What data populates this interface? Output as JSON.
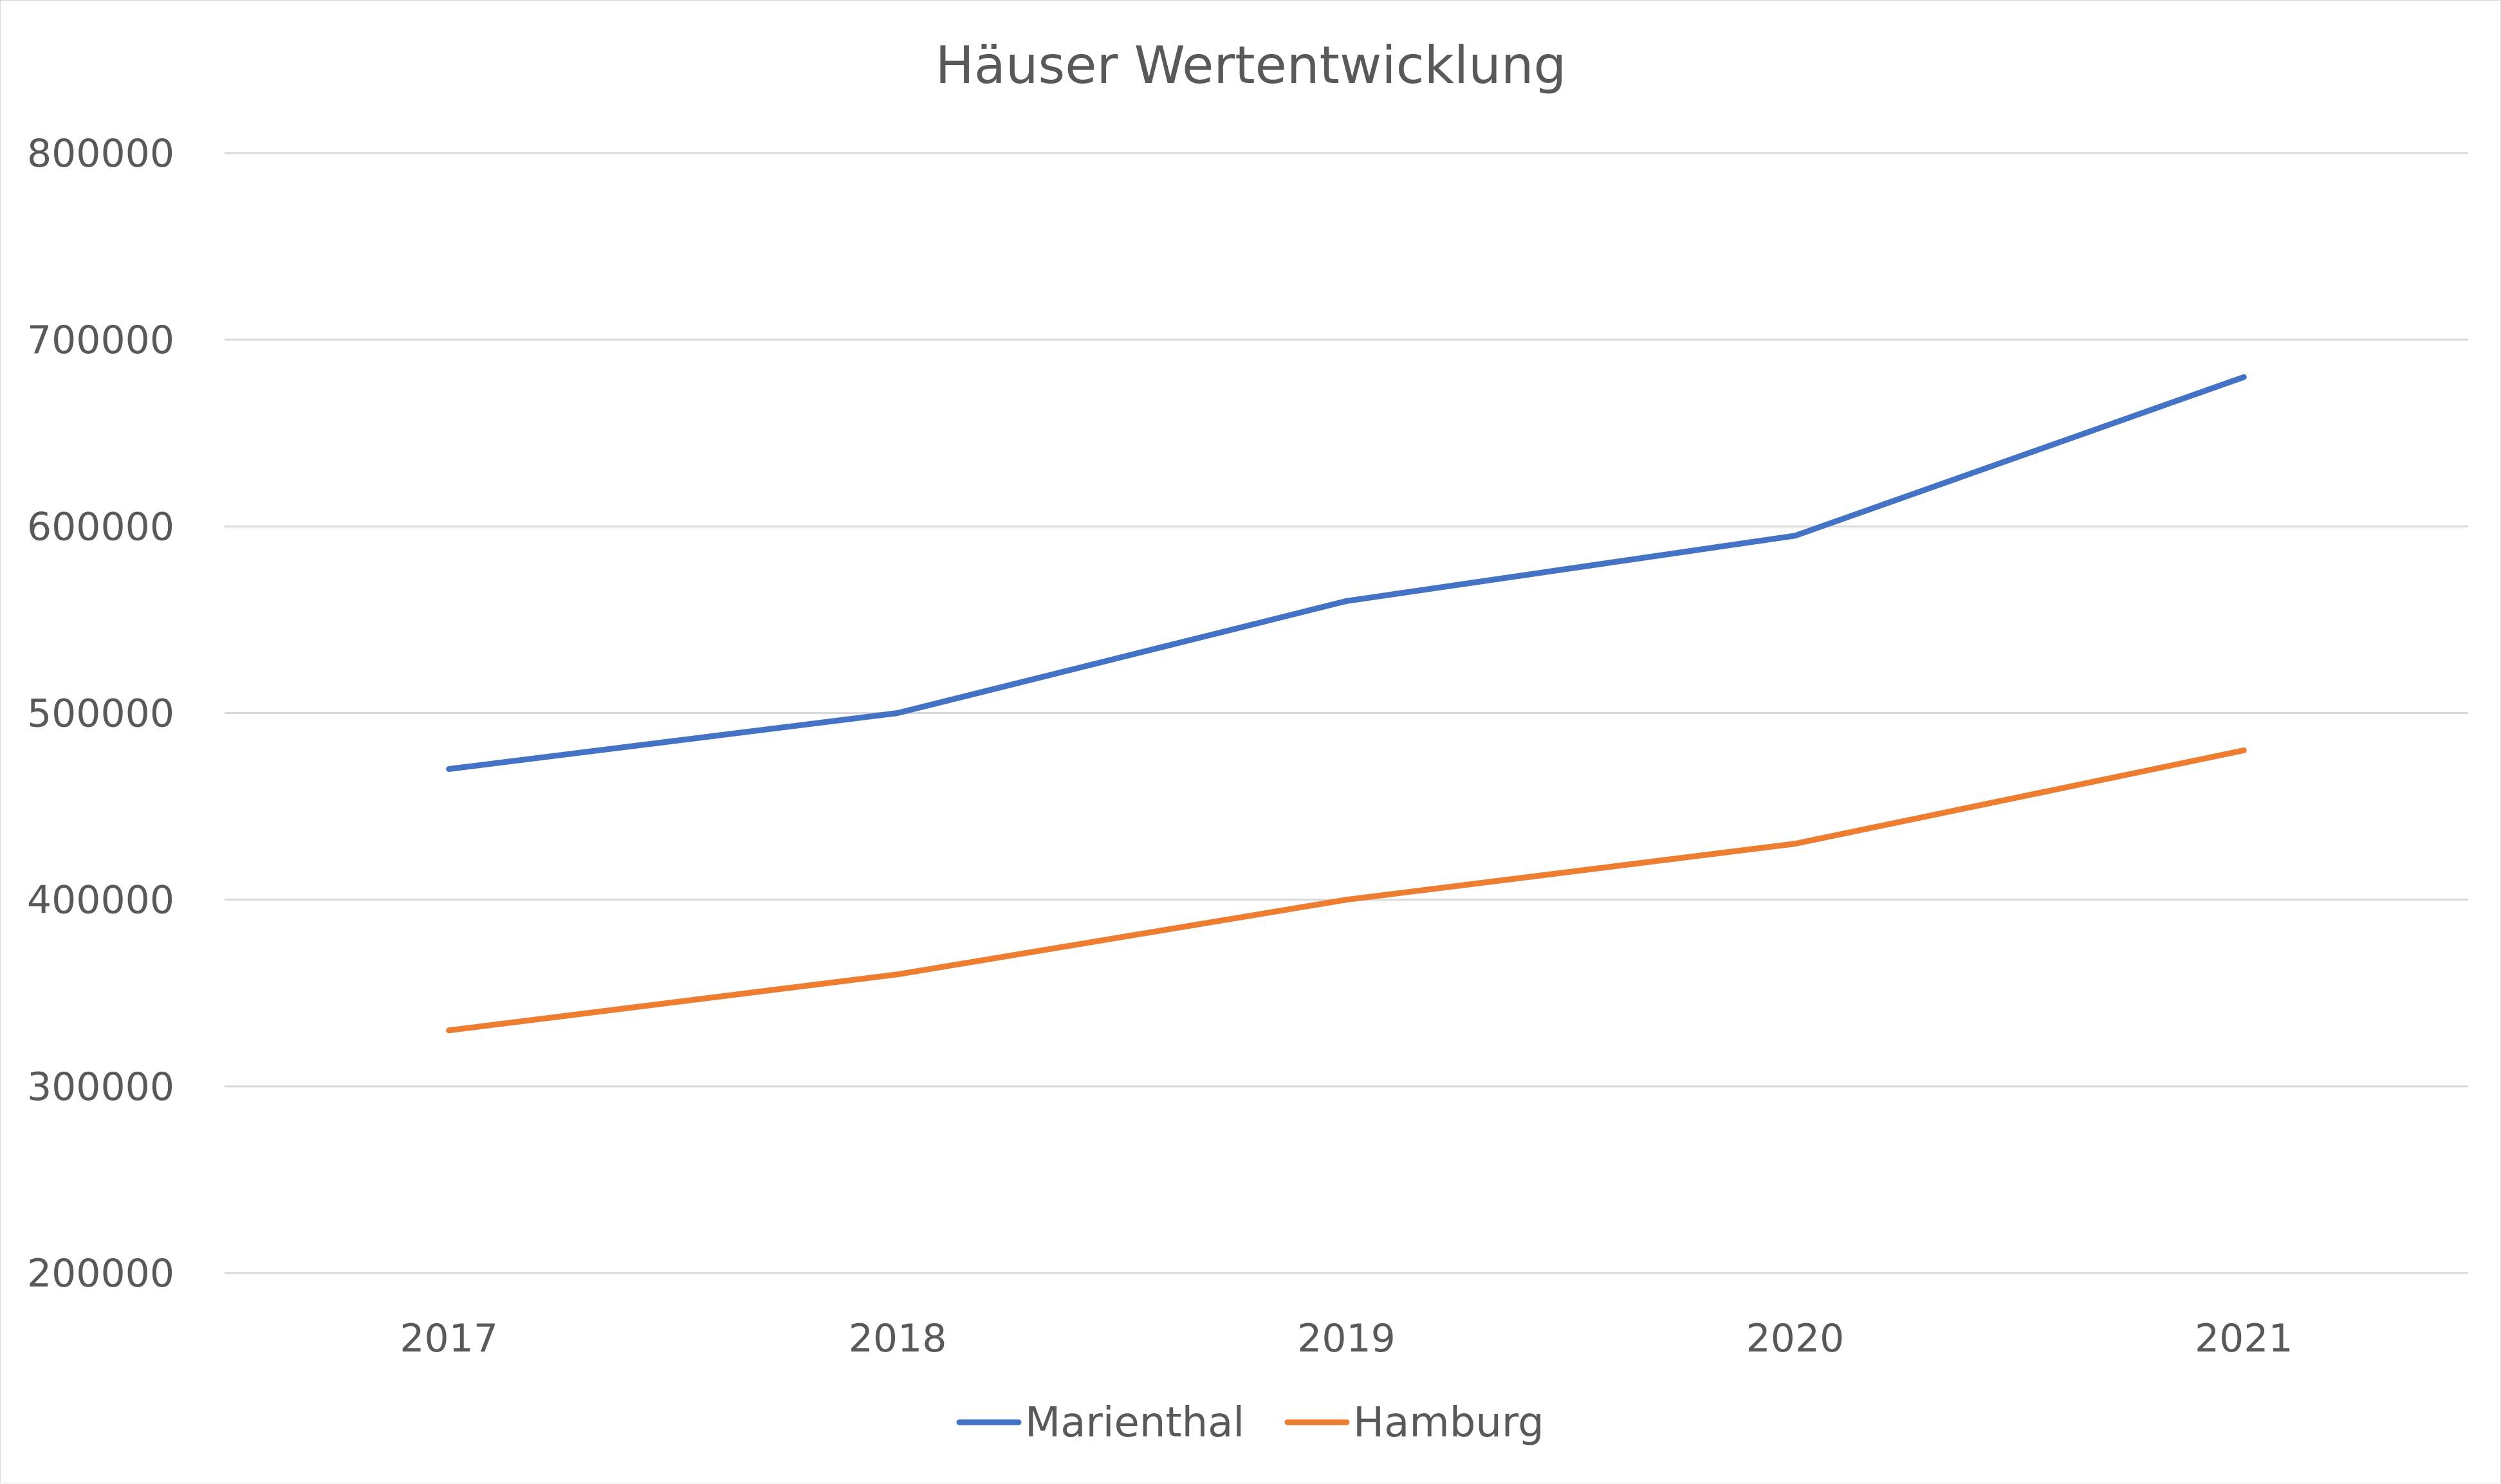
{
  "chart_data": {
    "type": "line",
    "title": "Häuser Wertentwicklung",
    "xlabel": "",
    "ylabel": "",
    "categories": [
      "2017",
      "2018",
      "2019",
      "2020",
      "2021"
    ],
    "series": [
      {
        "name": "Marienthal",
        "color": "#4472C4",
        "values": [
          470000,
          500000,
          560000,
          595000,
          680000
        ]
      },
      {
        "name": "Hamburg",
        "color": "#ED7D31",
        "values": [
          330000,
          360000,
          400000,
          430000,
          480000
        ]
      }
    ],
    "ylim": [
      200000,
      800000
    ],
    "yticks": [
      "200000",
      "300000",
      "400000",
      "500000",
      "600000",
      "700000",
      "800000"
    ],
    "grid": true,
    "legend": "bottom-center"
  }
}
